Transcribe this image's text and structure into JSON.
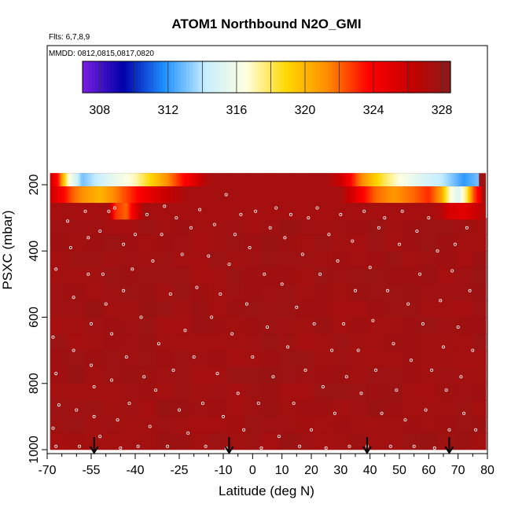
{
  "chart_data": {
    "type": "heatmap",
    "title": "ATOM1 Northbound N2O_GMI",
    "flights_label": "Flts: 6,7,8,9",
    "dates_label": "MMDD: 0812,0815,0817,0820",
    "xlabel": "Latitude (deg N)",
    "ylabel": "PSXC (mbar)",
    "xlim": [
      -70,
      80
    ],
    "ylim": [
      1000,
      150
    ],
    "x_ticks": [
      -70,
      -55,
      -40,
      -25,
      -10,
      0,
      10,
      20,
      30,
      40,
      50,
      60,
      70,
      80
    ],
    "x_tick_labels": [
      "-70",
      "-55",
      "-40",
      "-25",
      "-10",
      "0",
      "10",
      "20",
      "30",
      "40",
      "50",
      "60",
      "70",
      "80"
    ],
    "x_minor_ticks": [
      -65,
      -60,
      -50,
      -45,
      -35,
      -30,
      -20,
      -15,
      -5,
      5,
      15,
      25,
      35,
      45,
      55,
      65,
      75
    ],
    "y_ticks": [
      200,
      400,
      600,
      800,
      1000
    ],
    "y_tick_labels": [
      "200",
      "400",
      "600",
      "800",
      "1000"
    ],
    "colorbar": {
      "min": 307,
      "max": 328.5,
      "ticks": [
        308,
        312,
        316,
        320,
        324,
        328
      ],
      "tick_labels": [
        "308",
        "312",
        "316",
        "320",
        "324",
        "328"
      ],
      "colors": [
        "#7a1fe0",
        "#0000aa",
        "#1e90ff",
        "#c6eeff",
        "#ffffe0",
        "#ffd700",
        "#ff8c00",
        "#ff0000",
        "#c80000",
        "#8b1a1a"
      ]
    },
    "field": {
      "background_value": 327.8,
      "bands": [
        {
          "p_top": 165,
          "p_bottom": 205,
          "lat_from": -69,
          "lat_to": 77,
          "profile": [
            [
              -69,
              326
            ],
            [
              -66,
              323
            ],
            [
              -63,
              317
            ],
            [
              -58,
              313
            ],
            [
              -50,
              315
            ],
            [
              -40,
              317
            ],
            [
              -32,
              320
            ],
            [
              -25,
              323
            ],
            [
              -20,
              325
            ],
            [
              -16,
              327
            ],
            [
              -13,
              327.5
            ],
            [
              25,
              327.5
            ],
            [
              30,
              326
            ],
            [
              33,
              324
            ],
            [
              36,
              322
            ],
            [
              40,
              320
            ],
            [
              45,
              318
            ],
            [
              50,
              316.5
            ],
            [
              58,
              315
            ],
            [
              65,
              314
            ],
            [
              72,
              312
            ],
            [
              77,
              313
            ]
          ]
        },
        {
          "p_top": 205,
          "p_bottom": 255,
          "lat_from": -69,
          "lat_to": 78,
          "profile": [
            [
              -69,
              326
            ],
            [
              -65,
              324
            ],
            [
              -61,
              322
            ],
            [
              -57,
              321
            ],
            [
              -52,
              320
            ],
            [
              -45,
              322
            ],
            [
              -38,
              324
            ],
            [
              -30,
              326
            ],
            [
              -22,
              327.5
            ],
            [
              30,
              327.5
            ],
            [
              33,
              326
            ],
            [
              37,
              324
            ],
            [
              42,
              322
            ],
            [
              48,
              321
            ],
            [
              55,
              322
            ],
            [
              60,
              323
            ],
            [
              64,
              321
            ],
            [
              67,
              317
            ],
            [
              70,
              315
            ],
            [
              73,
              318
            ],
            [
              75,
              322
            ],
            [
              78,
              325
            ]
          ]
        },
        {
          "p_top": 255,
          "p_bottom": 305,
          "lat_from": -69,
          "lat_to": 79,
          "profile": [
            [
              -69,
              327.5
            ],
            [
              -49,
              327.5
            ],
            [
              -47,
              323
            ],
            [
              -43,
              322
            ],
            [
              -40,
              325
            ],
            [
              -37,
              327.5
            ],
            [
              60,
              327.5
            ],
            [
              64,
              327
            ],
            [
              67,
              325.5
            ],
            [
              72,
              325
            ],
            [
              76,
              326
            ],
            [
              79,
              327
            ]
          ]
        }
      ],
      "arrows_lat": [
        -54,
        -8,
        39,
        67
      ],
      "sample_points": [
        [
          -67,
          455
        ],
        [
          -68,
          660
        ],
        [
          -67,
          770
        ],
        [
          -66,
          865
        ],
        [
          -68,
          935
        ],
        [
          -67,
          990
        ],
        [
          -63,
          310
        ],
        [
          -62,
          390
        ],
        [
          -61,
          540
        ],
        [
          -61,
          700
        ],
        [
          -60,
          880
        ],
        [
          -59,
          990
        ],
        [
          -57,
          280
        ],
        [
          -56,
          360
        ],
        [
          -56,
          470
        ],
        [
          -55,
          620
        ],
        [
          -55,
          745
        ],
        [
          -54,
          810
        ],
        [
          -54,
          900
        ],
        [
          -52,
          960
        ],
        [
          -52,
          340
        ],
        [
          -51,
          470
        ],
        [
          -50,
          560
        ],
        [
          -49,
          280
        ],
        [
          -48,
          650
        ],
        [
          -48,
          790
        ],
        [
          -47,
          270
        ],
        [
          -46,
          910
        ],
        [
          -45,
          995
        ],
        [
          -44,
          380
        ],
        [
          -44,
          520
        ],
        [
          -43,
          720
        ],
        [
          -42,
          860
        ],
        [
          -41,
          455
        ],
        [
          -40,
          350
        ],
        [
          -39,
          990
        ],
        [
          -38,
          600
        ],
        [
          -37,
          780
        ],
        [
          -36,
          290
        ],
        [
          -35,
          930
        ],
        [
          -34,
          430
        ],
        [
          -33,
          820
        ],
        [
          -32,
          680
        ],
        [
          -31,
          350
        ],
        [
          -30,
          265
        ],
        [
          -29,
          990
        ],
        [
          -28,
          530
        ],
        [
          -27,
          760
        ],
        [
          -26,
          300
        ],
        [
          -25,
          880
        ],
        [
          -24,
          410
        ],
        [
          -23,
          640
        ],
        [
          -22,
          950
        ],
        [
          -21,
          330
        ],
        [
          -20,
          720
        ],
        [
          -19,
          510
        ],
        [
          -18,
          275
        ],
        [
          -17,
          860
        ],
        [
          -16,
          990
        ],
        [
          -15,
          415
        ],
        [
          -14,
          600
        ],
        [
          -13,
          320
        ],
        [
          -12,
          770
        ],
        [
          -11,
          530
        ],
        [
          -10,
          900
        ],
        [
          -9,
          230
        ],
        [
          -9,
          995
        ],
        [
          -8,
          440
        ],
        [
          -7,
          650
        ],
        [
          -6,
          350
        ],
        [
          -5,
          830
        ],
        [
          -4,
          290
        ],
        [
          -3,
          940
        ],
        [
          -2,
          560
        ],
        [
          -1,
          390
        ],
        [
          0,
          720
        ],
        [
          1,
          280
        ],
        [
          2,
          860
        ],
        [
          3,
          995
        ],
        [
          4,
          470
        ],
        [
          5,
          630
        ],
        [
          6,
          330
        ],
        [
          7,
          780
        ],
        [
          8,
          270
        ],
        [
          9,
          960
        ],
        [
          10,
          500
        ],
        [
          11,
          360
        ],
        [
          12,
          690
        ],
        [
          13,
          290
        ],
        [
          14,
          860
        ],
        [
          15,
          570
        ],
        [
          16,
          990
        ],
        [
          17,
          410
        ],
        [
          18,
          760
        ],
        [
          19,
          300
        ],
        [
          20,
          940
        ],
        [
          21,
          620
        ],
        [
          22,
          270
        ],
        [
          23,
          470
        ],
        [
          24,
          810
        ],
        [
          25,
          995
        ],
        [
          26,
          350
        ],
        [
          27,
          700
        ],
        [
          28,
          890
        ],
        [
          29,
          430
        ],
        [
          30,
          290
        ],
        [
          31,
          620
        ],
        [
          32,
          780
        ],
        [
          33,
          990
        ],
        [
          34,
          370
        ],
        [
          35,
          520
        ],
        [
          36,
          700
        ],
        [
          37,
          830
        ],
        [
          38,
          280
        ],
        [
          39,
          990
        ],
        [
          40,
          450
        ],
        [
          41,
          610
        ],
        [
          42,
          760
        ],
        [
          43,
          330
        ],
        [
          44,
          890
        ],
        [
          45,
          300
        ],
        [
          46,
          520
        ],
        [
          47,
          990
        ],
        [
          48,
          680
        ],
        [
          49,
          820
        ],
        [
          50,
          380
        ],
        [
          51,
          280
        ],
        [
          52,
          910
        ],
        [
          53,
          560
        ],
        [
          54,
          730
        ],
        [
          55,
          990
        ],
        [
          56,
          340
        ],
        [
          57,
          470
        ],
        [
          58,
          620
        ],
        [
          59,
          880
        ],
        [
          60,
          300
        ],
        [
          61,
          760
        ],
        [
          62,
          995
        ],
        [
          63,
          400
        ],
        [
          64,
          550
        ],
        [
          65,
          690
        ],
        [
          66,
          820
        ],
        [
          67,
          940
        ],
        [
          68,
          460
        ],
        [
          69,
          380
        ],
        [
          70,
          630
        ],
        [
          71,
          780
        ],
        [
          72,
          890
        ],
        [
          73,
          330
        ],
        [
          74,
          520
        ],
        [
          75,
          700
        ],
        [
          76,
          940
        ]
      ]
    }
  }
}
